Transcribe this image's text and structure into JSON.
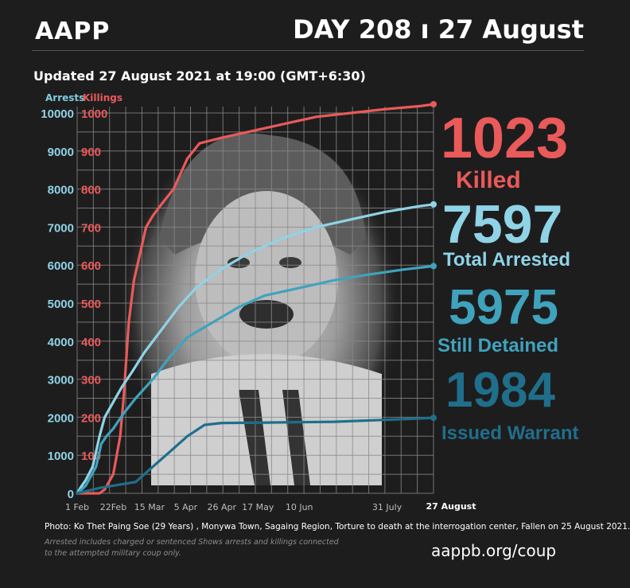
{
  "header": {
    "brand": "AAPP",
    "day_banner": "DAY 208 ı 27 August",
    "updated": "Updated 27 August 2021 at 19:00 (GMT+6:30)"
  },
  "colors": {
    "killings": "#ea5a5a",
    "total_arrested": "#8fd3e6",
    "still_detained": "#3fa3bd",
    "issued_warrant": "#1f6f8b",
    "grid": "#8a8a8a",
    "background": "#1e1d1e"
  },
  "stats": {
    "killed": {
      "number": "1023",
      "label": "Killed"
    },
    "arrested": {
      "number": "7597",
      "label": "Total Arrested"
    },
    "detained": {
      "number": "5975",
      "label": "Still Detained"
    },
    "warrant": {
      "number": "1984",
      "label": "Issued Warrant"
    }
  },
  "chart_data": {
    "type": "line",
    "y_left_label": "Arrests",
    "y_right_label": "Killings",
    "y_left_ticks": [
      "0",
      "1000",
      "2000",
      "3000",
      "4000",
      "5000",
      "6000",
      "7000",
      "8000",
      "9000",
      "10000"
    ],
    "y_right_ticks": [
      "100",
      "200",
      "300",
      "400",
      "500",
      "600",
      "700",
      "800",
      "900",
      "1000"
    ],
    "ylim_arrests": [
      0,
      10000
    ],
    "ylim_killings": [
      0,
      1000
    ],
    "xlim_day": [
      1,
      208
    ],
    "x_ticks": [
      {
        "label": "1 Feb",
        "day": 1
      },
      {
        "label": "22Feb",
        "day": 22
      },
      {
        "label": "15 Mar",
        "day": 43
      },
      {
        "label": "5 Apr",
        "day": 64
      },
      {
        "label": "26 Apr",
        "day": 85
      },
      {
        "label": "17 May",
        "day": 106
      },
      {
        "label": "10 Jun",
        "day": 130
      },
      {
        "label": "31 July",
        "day": 181
      },
      {
        "label": "27 August",
        "day": 208
      }
    ],
    "grid": true,
    "background_photo": "portrait-photo",
    "series": [
      {
        "name": "Killed",
        "axis": "killings",
        "color": "#ea5a5a",
        "points": [
          [
            1,
            0
          ],
          [
            14,
            0
          ],
          [
            17,
            10
          ],
          [
            22,
            50
          ],
          [
            26,
            150
          ],
          [
            28,
            250
          ],
          [
            31,
            450
          ],
          [
            34,
            560
          ],
          [
            38,
            640
          ],
          [
            41,
            700
          ],
          [
            45,
            730
          ],
          [
            50,
            760
          ],
          [
            57,
            800
          ],
          [
            65,
            880
          ],
          [
            72,
            920
          ],
          [
            85,
            935
          ],
          [
            100,
            950
          ],
          [
            120,
            970
          ],
          [
            140,
            990
          ],
          [
            160,
            1000
          ],
          [
            180,
            1010
          ],
          [
            200,
            1018
          ],
          [
            208,
            1023
          ]
        ]
      },
      {
        "name": "Total Arrested",
        "axis": "arrests",
        "color": "#8fd3e6",
        "points": [
          [
            1,
            0
          ],
          [
            3,
            150
          ],
          [
            6,
            350
          ],
          [
            10,
            700
          ],
          [
            14,
            1500
          ],
          [
            17,
            2000
          ],
          [
            22,
            2400
          ],
          [
            27,
            2800
          ],
          [
            33,
            3200
          ],
          [
            40,
            3700
          ],
          [
            50,
            4300
          ],
          [
            60,
            4900
          ],
          [
            70,
            5400
          ],
          [
            85,
            5900
          ],
          [
            100,
            6300
          ],
          [
            120,
            6700
          ],
          [
            140,
            7000
          ],
          [
            160,
            7200
          ],
          [
            180,
            7400
          ],
          [
            200,
            7550
          ],
          [
            208,
            7597
          ]
        ]
      },
      {
        "name": "Still Detained",
        "axis": "arrests",
        "color": "#3fa3bd",
        "points": [
          [
            1,
            0
          ],
          [
            6,
            200
          ],
          [
            12,
            700
          ],
          [
            15,
            1300
          ],
          [
            18,
            1500
          ],
          [
            22,
            1700
          ],
          [
            28,
            2100
          ],
          [
            35,
            2500
          ],
          [
            45,
            3000
          ],
          [
            55,
            3600
          ],
          [
            65,
            4100
          ],
          [
            80,
            4500
          ],
          [
            95,
            4900
          ],
          [
            110,
            5200
          ],
          [
            130,
            5400
          ],
          [
            150,
            5600
          ],
          [
            170,
            5750
          ],
          [
            190,
            5880
          ],
          [
            208,
            5975
          ]
        ]
      },
      {
        "name": "Issued Warrant",
        "axis": "arrests",
        "color": "#1f6f8b",
        "points": [
          [
            1,
            0
          ],
          [
            15,
            150
          ],
          [
            22,
            200
          ],
          [
            35,
            300
          ],
          [
            45,
            700
          ],
          [
            55,
            1100
          ],
          [
            65,
            1500
          ],
          [
            75,
            1800
          ],
          [
            85,
            1850
          ],
          [
            110,
            1860
          ],
          [
            150,
            1880
          ],
          [
            190,
            1950
          ],
          [
            208,
            1984
          ]
        ]
      }
    ]
  },
  "footer": {
    "photo_caption": "Photo:   Ko Thet Paing Soe (29 Years) , Monywa Town, Sagaing Region, Torture to death at the interrogation center, Fallen on 25 August 2021.",
    "note_line1": "Arrested includes charged or sentenced Shows arrests and killings connected",
    "note_line2": "to the attempted military coup only.",
    "site": "aappb.org/coup"
  }
}
